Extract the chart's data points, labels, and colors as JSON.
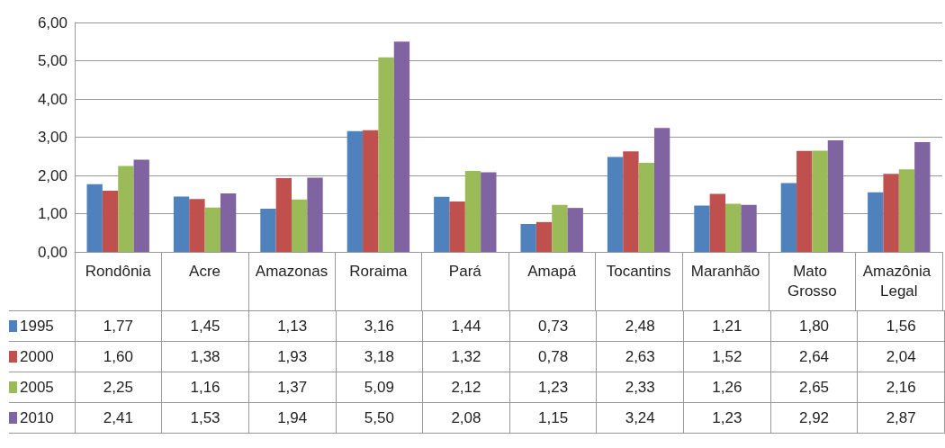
{
  "chart_data": {
    "type": "bar",
    "categories": [
      "Rondônia",
      "Acre",
      "Amazonas",
      "Roraima",
      "Pará",
      "Amapá",
      "Tocantins",
      "Maranhão",
      "Mato Grosso",
      "Amazônia Legal"
    ],
    "series": [
      {
        "name": "1995",
        "color": "#4f81bd",
        "values": [
          1.77,
          1.45,
          1.13,
          3.16,
          1.44,
          0.73,
          2.48,
          1.21,
          1.8,
          1.56
        ],
        "value_labels": [
          "1,77",
          "1,45",
          "1,13",
          "3,16",
          "1,44",
          "0,73",
          "2,48",
          "1,21",
          "1,80",
          "1,56"
        ]
      },
      {
        "name": "2000",
        "color": "#c0504d",
        "values": [
          1.6,
          1.38,
          1.93,
          3.18,
          1.32,
          0.78,
          2.63,
          1.52,
          2.64,
          2.04
        ],
        "value_labels": [
          "1,60",
          "1,38",
          "1,93",
          "3,18",
          "1,32",
          "0,78",
          "2,63",
          "1,52",
          "2,64",
          "2,04"
        ]
      },
      {
        "name": "2005",
        "color": "#9bbb59",
        "values": [
          2.25,
          1.16,
          1.37,
          5.09,
          2.12,
          1.23,
          2.33,
          1.26,
          2.65,
          2.16
        ],
        "value_labels": [
          "2,25",
          "1,16",
          "1,37",
          "5,09",
          "2,12",
          "1,23",
          "2,33",
          "1,26",
          "2,65",
          "2,16"
        ]
      },
      {
        "name": "2010",
        "color": "#8064a2",
        "values": [
          2.41,
          1.53,
          1.94,
          5.5,
          2.08,
          1.15,
          3.24,
          1.23,
          2.92,
          2.87
        ],
        "value_labels": [
          "2,41",
          "1,53",
          "1,94",
          "5,50",
          "2,08",
          "1,15",
          "3,24",
          "1,23",
          "2,92",
          "2,87"
        ]
      }
    ],
    "ylim": [
      0,
      6
    ],
    "yticks": [
      {
        "value": 0,
        "label": "0,00"
      },
      {
        "value": 1,
        "label": "1,00"
      },
      {
        "value": 2,
        "label": "2,00"
      },
      {
        "value": 3,
        "label": "3,00"
      },
      {
        "value": 4,
        "label": "4,00"
      },
      {
        "value": 5,
        "label": "5,00"
      },
      {
        "value": 6,
        "label": "6,00"
      }
    ],
    "grid": "y",
    "legend": "bottom left"
  }
}
